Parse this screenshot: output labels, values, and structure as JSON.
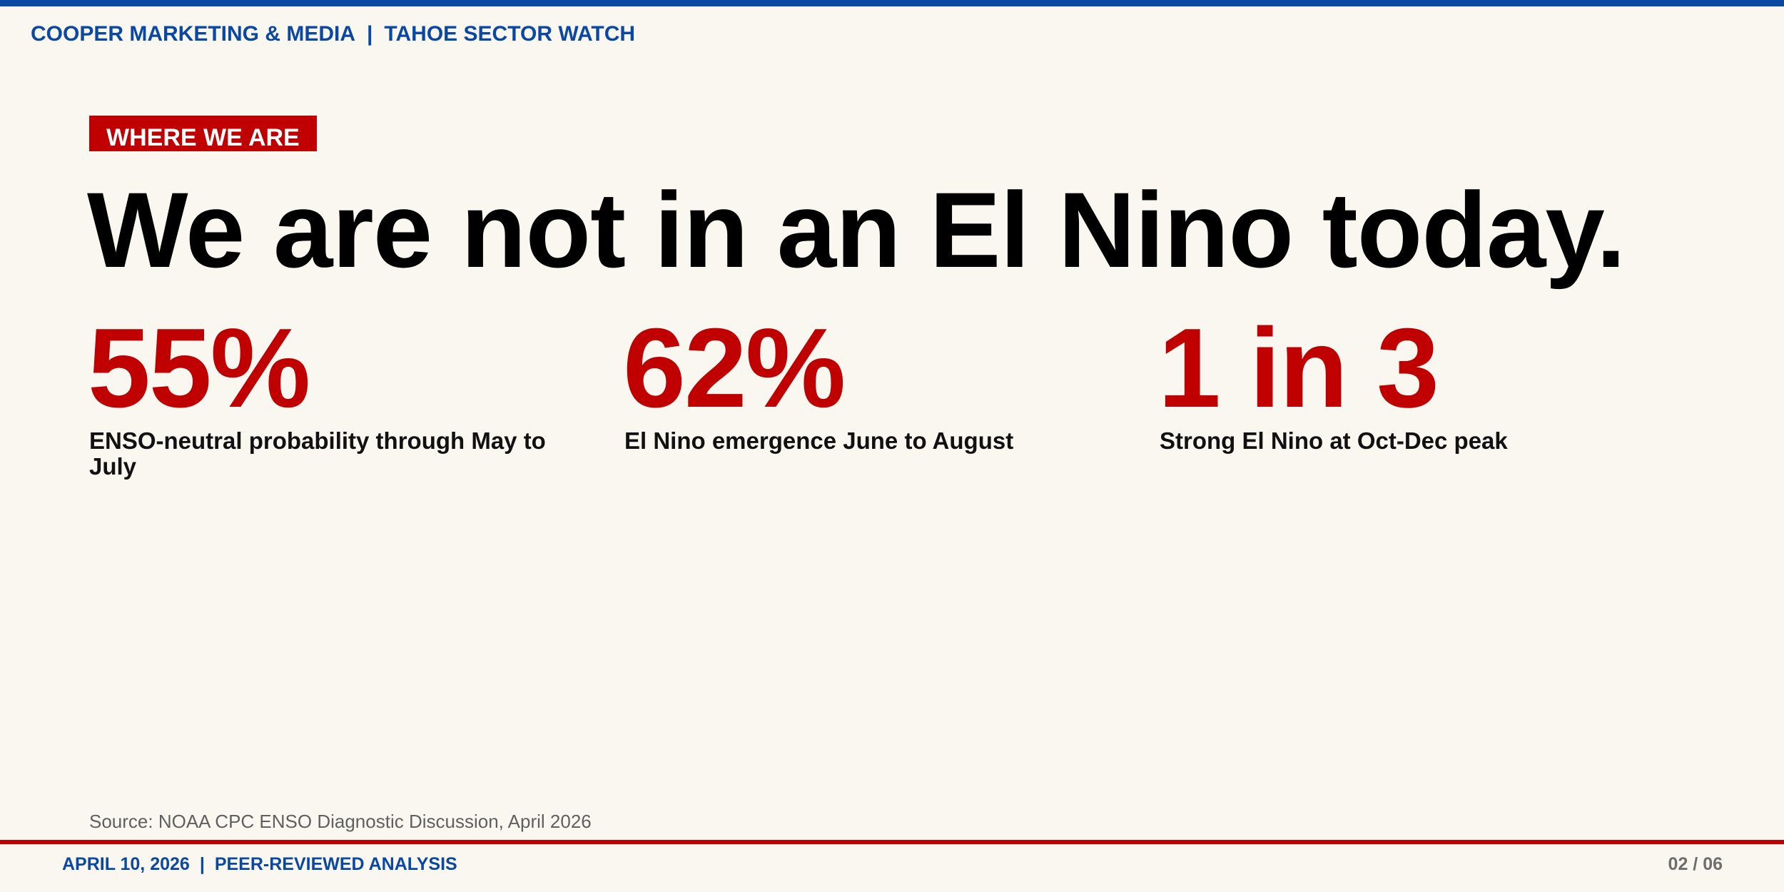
{
  "header": {
    "brand": "COOPER MARKETING & MEDIA",
    "separator": "|",
    "section": "TAHOE SECTOR WATCH"
  },
  "slide": {
    "kicker": "WHERE WE ARE",
    "headline": "We are not in an El Nino today.",
    "stats": [
      {
        "value": "55%",
        "label": "ENSO-neutral probability through May to July"
      },
      {
        "value": "62%",
        "label": "El Nino emergence June to August"
      },
      {
        "value": "1 in 3",
        "label": "Strong El Nino at Oct-Dec peak"
      }
    ],
    "source": "Source: NOAA CPC ENSO Diagnostic Discussion, April 2026"
  },
  "footer": {
    "date": "APRIL 10, 2026",
    "separator": "|",
    "tag": "PEER-REVIEWED ANALYSIS",
    "page": "02 / 06"
  },
  "colors": {
    "brand_blue": "#0a48a4",
    "accent_red": "#c00000",
    "background": "#faf7f1"
  }
}
